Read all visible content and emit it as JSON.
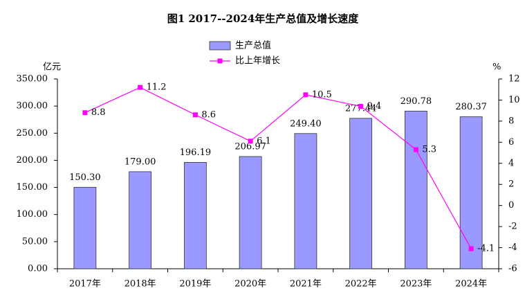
{
  "chart_data": {
    "type": "combo",
    "title": "图1  2017--2024年生产总值及增长速度",
    "y_label": "亿元",
    "y2_label": "%",
    "categories": [
      "2017年",
      "2018年",
      "2019年",
      "2020年",
      "2021年",
      "2022年",
      "2023年",
      "2024年"
    ],
    "series": [
      {
        "name": "生产总值",
        "type": "bar",
        "color": "#9999ff",
        "values": [
          150.3,
          179.0,
          196.19,
          206.97,
          249.4,
          277.44,
          290.78,
          280.37
        ],
        "value_labels": [
          "150.30",
          "179.00",
          "196.19",
          "206.97",
          "249.40",
          "277.44",
          "290.78",
          "280.37"
        ]
      },
      {
        "name": "比上年增长",
        "type": "line",
        "axis": "y2",
        "color": "#ff00ff",
        "values": [
          8.8,
          11.2,
          8.6,
          6.1,
          10.5,
          9.4,
          5.3,
          -4.1
        ]
      }
    ],
    "ylim": [
      0,
      350
    ],
    "yticks": [
      {
        "value": 0,
        "label": "0.00"
      },
      {
        "value": 50,
        "label": "50.00"
      },
      {
        "value": 100,
        "label": "100.00"
      },
      {
        "value": 150,
        "label": "150.00"
      },
      {
        "value": 200,
        "label": "200.00"
      },
      {
        "value": 250,
        "label": "250.00"
      },
      {
        "value": 300,
        "label": "300.00"
      },
      {
        "value": 350,
        "label": "350.00"
      }
    ],
    "y2lim": [
      -6,
      12
    ],
    "y2ticks": [
      -6,
      -4,
      -2,
      0,
      2,
      4,
      6,
      8,
      10,
      12
    ],
    "grid": false
  }
}
